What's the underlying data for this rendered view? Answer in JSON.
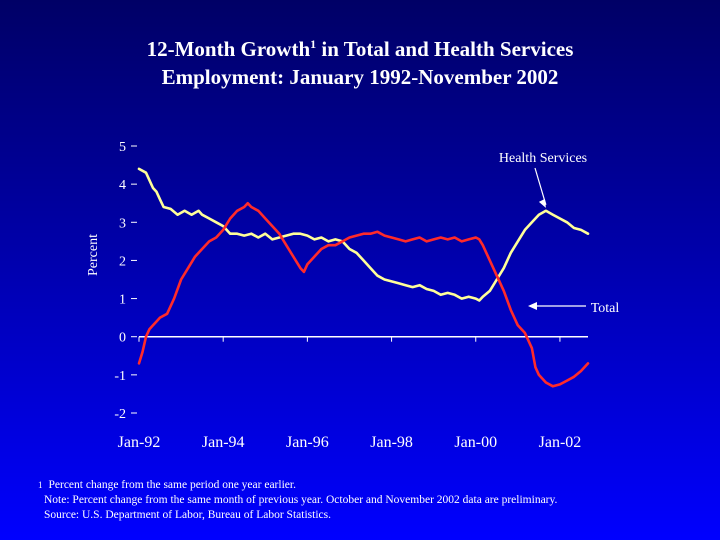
{
  "slide": {
    "title_line1_pre": "12-Month Growth",
    "title_line1_sup": "1",
    "title_line1_post": " in Total and Health Services",
    "title_line2": "Employment: January 1992-November 2002"
  },
  "footnotes": {
    "mark": "1",
    "note1": "Percent change from the same period one year earlier.",
    "note2": "Note:  Percent change from the same month of previous year. October and November 2002 data are preliminary.",
    "source": "Source:  U.S. Department of Labor, Bureau of Labor Statistics."
  },
  "colors": {
    "health_line": "#ffff99",
    "total_line": "#ff2a2a",
    "axis": "#ffffff",
    "text": "#ffffff"
  },
  "chart_data": {
    "type": "line",
    "title": "12-Month Growth in Total and Health Services Employment: January 1992-November 2002",
    "xlabel": "",
    "ylabel": "Percent",
    "ylim": [
      -2,
      5
    ],
    "yticks": [
      5,
      4,
      3,
      2,
      1,
      0,
      -1,
      -2
    ],
    "x_start": "1992-01",
    "x_end": "2002-11",
    "xticks": [
      {
        "month_index": 0,
        "label": "Jan-92"
      },
      {
        "month_index": 24,
        "label": "Jan-94"
      },
      {
        "month_index": 48,
        "label": "Jan-96"
      },
      {
        "month_index": 72,
        "label": "Jan-98"
      },
      {
        "month_index": 96,
        "label": "Jan-00"
      },
      {
        "month_index": 120,
        "label": "Jan-02"
      }
    ],
    "grid": false,
    "series": [
      {
        "name": "Health Services",
        "annotation": "Health Services",
        "annotation_point": [
          116,
          3.3
        ],
        "points": [
          [
            0,
            4.4
          ],
          [
            2,
            4.3
          ],
          [
            4,
            3.9
          ],
          [
            5,
            3.8
          ],
          [
            6,
            3.6
          ],
          [
            7,
            3.4
          ],
          [
            9,
            3.35
          ],
          [
            11,
            3.2
          ],
          [
            13,
            3.3
          ],
          [
            15,
            3.2
          ],
          [
            17,
            3.3
          ],
          [
            18,
            3.2
          ],
          [
            20,
            3.1
          ],
          [
            22,
            3.0
          ],
          [
            24,
            2.9
          ],
          [
            26,
            2.7
          ],
          [
            28,
            2.7
          ],
          [
            30,
            2.65
          ],
          [
            32,
            2.7
          ],
          [
            34,
            2.6
          ],
          [
            36,
            2.7
          ],
          [
            38,
            2.55
          ],
          [
            40,
            2.6
          ],
          [
            42,
            2.65
          ],
          [
            44,
            2.7
          ],
          [
            46,
            2.7
          ],
          [
            48,
            2.65
          ],
          [
            50,
            2.55
          ],
          [
            52,
            2.6
          ],
          [
            54,
            2.5
          ],
          [
            56,
            2.55
          ],
          [
            58,
            2.5
          ],
          [
            60,
            2.3
          ],
          [
            62,
            2.2
          ],
          [
            64,
            2.0
          ],
          [
            66,
            1.8
          ],
          [
            68,
            1.6
          ],
          [
            70,
            1.5
          ],
          [
            72,
            1.45
          ],
          [
            74,
            1.4
          ],
          [
            76,
            1.35
          ],
          [
            78,
            1.3
          ],
          [
            80,
            1.35
          ],
          [
            82,
            1.25
          ],
          [
            84,
            1.2
          ],
          [
            86,
            1.1
          ],
          [
            88,
            1.15
          ],
          [
            90,
            1.1
          ],
          [
            92,
            1.0
          ],
          [
            94,
            1.05
          ],
          [
            96,
            1.0
          ],
          [
            97,
            0.95
          ],
          [
            98,
            1.05
          ],
          [
            100,
            1.2
          ],
          [
            102,
            1.5
          ],
          [
            104,
            1.8
          ],
          [
            106,
            2.2
          ],
          [
            108,
            2.5
          ],
          [
            110,
            2.8
          ],
          [
            112,
            3.0
          ],
          [
            114,
            3.2
          ],
          [
            116,
            3.3
          ],
          [
            118,
            3.2
          ],
          [
            120,
            3.1
          ],
          [
            122,
            3.0
          ],
          [
            124,
            2.85
          ],
          [
            126,
            2.8
          ],
          [
            128,
            2.7
          ]
        ]
      },
      {
        "name": "Total",
        "annotation": "Total",
        "annotation_point": [
          110,
          0.9
        ],
        "points": [
          [
            0,
            -0.7
          ],
          [
            1,
            -0.4
          ],
          [
            2,
            0.0
          ],
          [
            3,
            0.2
          ],
          [
            4,
            0.3
          ],
          [
            5,
            0.4
          ],
          [
            6,
            0.5
          ],
          [
            8,
            0.6
          ],
          [
            10,
            1.0
          ],
          [
            12,
            1.5
          ],
          [
            14,
            1.8
          ],
          [
            16,
            2.1
          ],
          [
            18,
            2.3
          ],
          [
            20,
            2.5
          ],
          [
            22,
            2.6
          ],
          [
            24,
            2.8
          ],
          [
            26,
            3.1
          ],
          [
            28,
            3.3
          ],
          [
            30,
            3.4
          ],
          [
            31,
            3.5
          ],
          [
            32,
            3.4
          ],
          [
            34,
            3.3
          ],
          [
            36,
            3.1
          ],
          [
            38,
            2.9
          ],
          [
            40,
            2.7
          ],
          [
            42,
            2.4
          ],
          [
            44,
            2.1
          ],
          [
            46,
            1.8
          ],
          [
            47,
            1.7
          ],
          [
            48,
            1.9
          ],
          [
            50,
            2.1
          ],
          [
            52,
            2.3
          ],
          [
            54,
            2.4
          ],
          [
            56,
            2.4
          ],
          [
            58,
            2.5
          ],
          [
            60,
            2.6
          ],
          [
            62,
            2.65
          ],
          [
            64,
            2.7
          ],
          [
            66,
            2.7
          ],
          [
            68,
            2.75
          ],
          [
            70,
            2.65
          ],
          [
            72,
            2.6
          ],
          [
            74,
            2.55
          ],
          [
            76,
            2.5
          ],
          [
            78,
            2.55
          ],
          [
            80,
            2.6
          ],
          [
            82,
            2.5
          ],
          [
            84,
            2.55
          ],
          [
            86,
            2.6
          ],
          [
            88,
            2.55
          ],
          [
            90,
            2.6
          ],
          [
            92,
            2.5
          ],
          [
            94,
            2.55
          ],
          [
            96,
            2.6
          ],
          [
            97,
            2.55
          ],
          [
            98,
            2.4
          ],
          [
            99,
            2.2
          ],
          [
            100,
            2.0
          ],
          [
            102,
            1.6
          ],
          [
            104,
            1.2
          ],
          [
            106,
            0.7
          ],
          [
            108,
            0.3
          ],
          [
            110,
            0.1
          ],
          [
            112,
            -0.3
          ],
          [
            113,
            -0.8
          ],
          [
            114,
            -1.0
          ],
          [
            116,
            -1.2
          ],
          [
            118,
            -1.3
          ],
          [
            120,
            -1.25
          ],
          [
            122,
            -1.15
          ],
          [
            124,
            -1.05
          ],
          [
            126,
            -0.9
          ],
          [
            128,
            -0.7
          ]
        ]
      }
    ]
  }
}
